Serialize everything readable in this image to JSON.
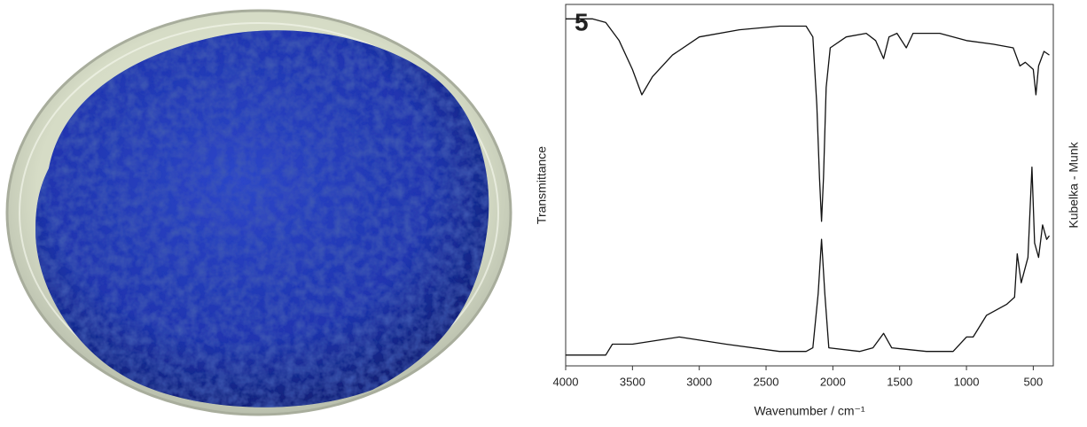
{
  "chart_data": {
    "type": "line",
    "panel_label": "5",
    "x_label": "Wavenumber / cm⁻¹",
    "y_label": "Transmittance",
    "y2_label": "Kubelka - Munk",
    "xlim": [
      4000,
      350
    ],
    "xticks": [
      4000,
      3500,
      3000,
      2500,
      2000,
      1500,
      1000,
      500
    ],
    "ylim": [
      0,
      100
    ],
    "y2lim": [
      0,
      100
    ],
    "series": [
      {
        "name": "Transmittance",
        "color": "#111111",
        "axis": "y",
        "x": [
          4000,
          3800,
          3700,
          3600,
          3500,
          3430,
          3350,
          3200,
          3000,
          2700,
          2400,
          2200,
          2150,
          2120,
          2100,
          2085,
          2070,
          2050,
          2020,
          1900,
          1750,
          1680,
          1620,
          1580,
          1520,
          1450,
          1400,
          1200,
          1000,
          800,
          650,
          600,
          560,
          500,
          480,
          460,
          420,
          380
        ],
        "values": [
          96,
          96,
          95,
          90,
          82,
          75,
          80,
          86,
          91,
          93,
          94,
          94,
          91,
          72,
          52,
          40,
          52,
          77,
          88,
          91,
          92,
          90,
          85,
          91,
          92,
          88,
          92,
          92,
          90,
          89,
          88,
          83,
          84,
          82,
          75,
          83,
          87,
          86
        ]
      },
      {
        "name": "Kubelka - Munk",
        "color": "#111111",
        "axis": "y2",
        "x": [
          4000,
          3700,
          3650,
          3500,
          3150,
          2800,
          2400,
          2200,
          2150,
          2110,
          2085,
          2060,
          2030,
          1800,
          1700,
          1620,
          1560,
          1300,
          1100,
          1000,
          950,
          850,
          700,
          640,
          620,
          590,
          540,
          510,
          490,
          460,
          430,
          400,
          380
        ],
        "values": [
          3,
          3,
          6,
          6,
          8,
          6,
          4,
          4,
          5,
          20,
          35,
          20,
          5,
          4,
          5,
          9,
          5,
          4,
          4,
          8,
          8,
          14,
          17,
          19,
          31,
          23,
          30,
          55,
          34,
          30,
          39,
          35,
          36
        ]
      }
    ]
  }
}
